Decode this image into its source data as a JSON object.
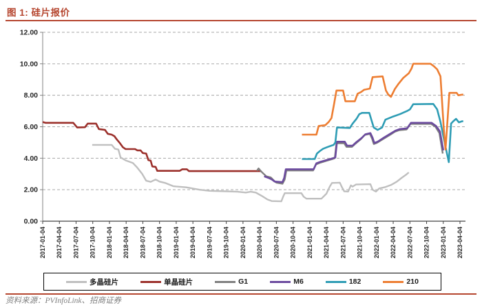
{
  "title": "图 1: 硅片报价",
  "source": "资料来源：PVInfoLink、招商证券",
  "colors": {
    "accent_red": "#b5452e",
    "axis_text": "#262626",
    "gridline": "#a6a6a6",
    "axis_line": "#404040"
  },
  "chart_data": {
    "type": "line",
    "title": "硅片报价",
    "xlabel": "",
    "ylabel": "",
    "ylim": [
      0,
      12
    ],
    "y_tick_labels": [
      "0.00",
      "2.00",
      "4.00",
      "6.00",
      "8.00",
      "10.00",
      "12.00"
    ],
    "grid": "dashed horizontal",
    "legend_position": "bottom",
    "x_unit": "months since 2017-01-04",
    "x_domain": [
      0,
      76
    ],
    "x_tick_step_months": 3,
    "x_tick_labels": [
      "2017-01-04",
      "2017-04-04",
      "2017-07-04",
      "2017-10-04",
      "2018-01-04",
      "2018-04-04",
      "2018-07-04",
      "2018-10-04",
      "2019-01-04",
      "2019-04-04",
      "2019-07-04",
      "2019-10-04",
      "2020-01-04",
      "2020-04-04",
      "2020-07-04",
      "2020-10-04",
      "2021-01-04",
      "2021-04-04",
      "2021-07-04",
      "2021-10-04",
      "2022-01-04",
      "2022-04-04",
      "2022-07-04",
      "2022-10-04",
      "2023-01-04",
      "2023-04-04"
    ],
    "series": [
      {
        "key": "poly",
        "name": "多晶硅片",
        "color": "#bfbfbf",
        "width": 2.4,
        "points": [
          [
            8.9,
            4.85
          ],
          [
            12.4,
            4.85
          ],
          [
            13,
            4.6
          ],
          [
            13.6,
            4.55
          ],
          [
            14,
            4.05
          ],
          [
            15,
            3.85
          ],
          [
            16.2,
            3.7
          ],
          [
            17,
            3.4
          ],
          [
            17.9,
            3.0
          ],
          [
            18.6,
            2.57
          ],
          [
            19.4,
            2.5
          ],
          [
            20.3,
            2.65
          ],
          [
            21,
            2.52
          ],
          [
            22,
            2.43
          ],
          [
            23.5,
            2.22
          ],
          [
            25.8,
            2.15
          ],
          [
            28.2,
            2.0
          ],
          [
            30,
            1.93
          ],
          [
            33,
            1.9
          ],
          [
            35,
            1.87
          ],
          [
            36.5,
            1.82
          ],
          [
            37.4,
            1.87
          ],
          [
            38.3,
            1.82
          ],
          [
            39.4,
            1.6
          ],
          [
            40.4,
            1.38
          ],
          [
            41.2,
            1.28
          ],
          [
            42.9,
            1.26
          ],
          [
            43.2,
            1.55
          ],
          [
            43.5,
            1.78
          ],
          [
            46.5,
            1.78
          ],
          [
            46.9,
            1.56
          ],
          [
            47.4,
            1.43
          ],
          [
            50.1,
            1.43
          ],
          [
            51,
            1.75
          ],
          [
            51.6,
            2.2
          ],
          [
            52,
            2.43
          ],
          [
            53.4,
            2.45
          ],
          [
            53.8,
            2.15
          ],
          [
            54.2,
            1.9
          ],
          [
            54.9,
            1.88
          ],
          [
            55.4,
            2.28
          ],
          [
            55.7,
            2.2
          ],
          [
            56.3,
            2.33
          ],
          [
            58.9,
            2.35
          ],
          [
            59.3,
            2.0
          ],
          [
            59.9,
            1.88
          ],
          [
            60.5,
            2.08
          ],
          [
            61.6,
            2.17
          ],
          [
            62.6,
            2.3
          ],
          [
            63.6,
            2.5
          ],
          [
            64.5,
            2.75
          ],
          [
            65.3,
            2.95
          ],
          [
            65.8,
            3.1
          ]
        ]
      },
      {
        "key": "mono",
        "name": "单晶硅片",
        "color": "#9b2f2a",
        "width": 2.6,
        "points": [
          [
            0,
            6.3
          ],
          [
            0.5,
            6.25
          ],
          [
            5.5,
            6.25
          ],
          [
            6.2,
            5.95
          ],
          [
            7.6,
            5.97
          ],
          [
            8.1,
            6.2
          ],
          [
            9.6,
            6.2
          ],
          [
            10.1,
            5.85
          ],
          [
            11.2,
            5.8
          ],
          [
            11.7,
            5.55
          ],
          [
            12.4,
            5.5
          ],
          [
            12.9,
            5.4
          ],
          [
            13.3,
            5.2
          ],
          [
            13.9,
            4.95
          ],
          [
            14.4,
            4.7
          ],
          [
            14.9,
            4.58
          ],
          [
            16.6,
            4.58
          ],
          [
            17,
            4.5
          ],
          [
            17.6,
            4.5
          ],
          [
            18,
            4.33
          ],
          [
            18.6,
            4.3
          ],
          [
            19,
            3.88
          ],
          [
            19.4,
            3.85
          ],
          [
            19.7,
            3.48
          ],
          [
            20.3,
            3.45
          ],
          [
            20.6,
            3.2
          ],
          [
            24.6,
            3.2
          ],
          [
            25.1,
            3.3
          ],
          [
            25.9,
            3.3
          ],
          [
            26.3,
            3.18
          ],
          [
            39.2,
            3.18
          ]
        ]
      },
      {
        "key": "g1",
        "name": "G1",
        "color": "#7f7f7f",
        "width": 2.4,
        "points": [
          [
            38.5,
            3.2
          ],
          [
            38.8,
            3.35
          ],
          [
            39.3,
            3.15
          ],
          [
            40.2,
            2.85
          ],
          [
            41,
            2.78
          ],
          [
            41.5,
            2.6
          ],
          [
            42,
            2.45
          ],
          [
            43.1,
            2.38
          ],
          [
            43.5,
            2.65
          ],
          [
            43.8,
            3.22
          ],
          [
            48.6,
            3.22
          ],
          [
            49.1,
            3.6
          ],
          [
            49.9,
            3.72
          ],
          [
            51.1,
            3.85
          ],
          [
            52.1,
            3.95
          ],
          [
            52.5,
            4.0
          ],
          [
            52.8,
            4.95
          ],
          [
            54.2,
            4.95
          ],
          [
            54.6,
            4.72
          ],
          [
            55.6,
            4.72
          ],
          [
            56.2,
            4.92
          ],
          [
            57.2,
            5.22
          ],
          [
            57.9,
            5.48
          ],
          [
            58.8,
            5.55
          ],
          [
            59.2,
            5.25
          ],
          [
            59.5,
            4.9
          ],
          [
            60.1,
            4.98
          ],
          [
            61.2,
            5.22
          ],
          [
            62.5,
            5.5
          ],
          [
            63.3,
            5.68
          ],
          [
            64.1,
            5.78
          ],
          [
            65.4,
            5.82
          ],
          [
            66.1,
            6.18
          ],
          [
            69.8,
            6.18
          ],
          [
            70.6,
            6.0
          ],
          [
            71.3,
            5.6
          ],
          [
            71.9,
            4.3
          ]
        ]
      },
      {
        "key": "m6",
        "name": "M6",
        "color": "#6b4a9e",
        "width": 2.6,
        "points": [
          [
            39.8,
            2.85
          ],
          [
            40.6,
            2.75
          ],
          [
            41.2,
            2.65
          ],
          [
            41.7,
            2.52
          ],
          [
            43.1,
            2.48
          ],
          [
            43.4,
            2.75
          ],
          [
            43.7,
            3.3
          ],
          [
            48.7,
            3.3
          ],
          [
            49.2,
            3.68
          ],
          [
            50,
            3.78
          ],
          [
            51.2,
            3.9
          ],
          [
            52.2,
            4.0
          ],
          [
            52.6,
            4.05
          ],
          [
            52.9,
            5.05
          ],
          [
            54.3,
            5.05
          ],
          [
            54.7,
            4.8
          ],
          [
            55.7,
            4.8
          ],
          [
            56.3,
            5.0
          ],
          [
            57.3,
            5.28
          ],
          [
            58,
            5.52
          ],
          [
            58.9,
            5.6
          ],
          [
            59.3,
            5.3
          ],
          [
            59.6,
            4.97
          ],
          [
            60.2,
            5.05
          ],
          [
            61.3,
            5.3
          ],
          [
            62.6,
            5.58
          ],
          [
            63.4,
            5.75
          ],
          [
            64.2,
            5.85
          ],
          [
            65.5,
            5.9
          ],
          [
            66.2,
            6.25
          ],
          [
            69.9,
            6.25
          ],
          [
            70.7,
            6.05
          ],
          [
            71.4,
            5.7
          ],
          [
            72,
            4.5
          ]
        ]
      },
      {
        "key": "s182",
        "name": "182",
        "color": "#2d9cb4",
        "width": 2.6,
        "points": [
          [
            46.6,
            3.95
          ],
          [
            48.9,
            3.95
          ],
          [
            49.3,
            4.3
          ],
          [
            49.8,
            4.45
          ],
          [
            50.4,
            4.6
          ],
          [
            51.5,
            4.75
          ],
          [
            52.3,
            4.85
          ],
          [
            52.6,
            5.0
          ],
          [
            52.9,
            5.95
          ],
          [
            55.2,
            5.92
          ],
          [
            55.7,
            6.2
          ],
          [
            56.4,
            6.5
          ],
          [
            56.9,
            6.8
          ],
          [
            57.4,
            6.88
          ],
          [
            58.7,
            6.88
          ],
          [
            59.2,
            6.3
          ],
          [
            59.5,
            5.95
          ],
          [
            60.2,
            5.8
          ],
          [
            61,
            5.95
          ],
          [
            61.6,
            6.45
          ],
          [
            63,
            6.65
          ],
          [
            64.2,
            6.8
          ],
          [
            65.5,
            7.0
          ],
          [
            66,
            7.1
          ],
          [
            66.6,
            7.43
          ],
          [
            70.2,
            7.45
          ],
          [
            70.9,
            7.1
          ],
          [
            71.5,
            6.3
          ],
          [
            72.3,
            4.9
          ],
          [
            73,
            3.75
          ],
          [
            73.4,
            6.2
          ],
          [
            73.8,
            6.35
          ],
          [
            74.3,
            6.5
          ],
          [
            74.8,
            6.28
          ],
          [
            75.4,
            6.35
          ],
          [
            75.6,
            6.35
          ]
        ]
      },
      {
        "key": "s210",
        "name": "210",
        "color": "#ed7d31",
        "width": 2.6,
        "points": [
          [
            46.6,
            5.5
          ],
          [
            49.2,
            5.5
          ],
          [
            49.6,
            6.05
          ],
          [
            50.8,
            6.1
          ],
          [
            51.4,
            6.3
          ],
          [
            51.9,
            6.55
          ],
          [
            52.4,
            7.5
          ],
          [
            52.8,
            8.3
          ],
          [
            54,
            8.3
          ],
          [
            54.4,
            7.62
          ],
          [
            56.1,
            7.62
          ],
          [
            56.6,
            8.1
          ],
          [
            57.2,
            8.2
          ],
          [
            57.8,
            8.35
          ],
          [
            58.8,
            8.42
          ],
          [
            59.3,
            9.15
          ],
          [
            61.1,
            9.2
          ],
          [
            61.7,
            8.3
          ],
          [
            62.1,
            8.05
          ],
          [
            62.6,
            7.9
          ],
          [
            63.3,
            8.4
          ],
          [
            63.9,
            8.7
          ],
          [
            64.8,
            9.1
          ],
          [
            65.8,
            9.4
          ],
          [
            66.3,
            9.7
          ],
          [
            66.6,
            10.0
          ],
          [
            69.7,
            10.0
          ],
          [
            70.3,
            9.85
          ],
          [
            70.9,
            9.65
          ],
          [
            71.5,
            9.2
          ],
          [
            72.1,
            5.8
          ],
          [
            72.4,
            4.55
          ],
          [
            72.8,
            6.6
          ],
          [
            73.1,
            8.15
          ],
          [
            74.4,
            8.15
          ],
          [
            74.7,
            8.0
          ],
          [
            75.6,
            8.05
          ]
        ]
      }
    ]
  }
}
